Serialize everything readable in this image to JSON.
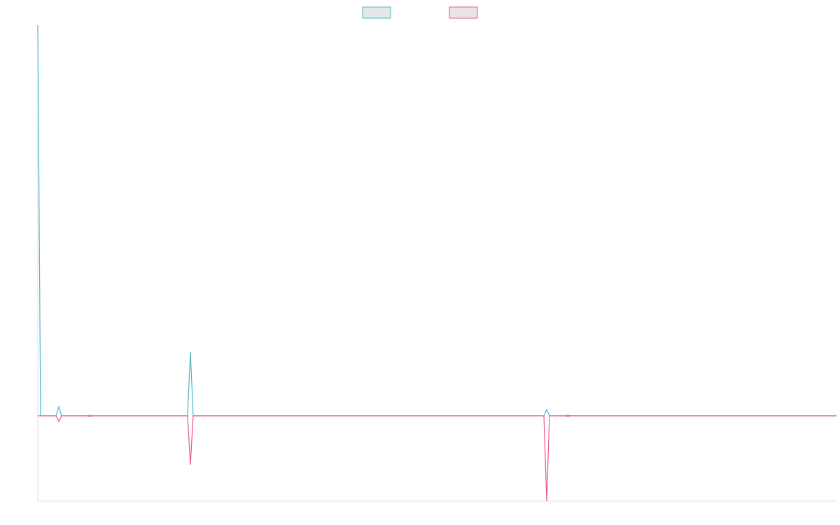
{
  "chart_data": {
    "type": "line",
    "x": [
      0,
      4,
      26,
      30,
      34,
      70,
      74,
      78,
      214,
      218,
      222,
      723,
      727,
      731,
      753,
      757,
      761,
      1141
    ],
    "series": [
      {
        "color": "#4bb8c4",
        "values": [
          558,
          0,
          0,
          13,
          0,
          0,
          1,
          0,
          0,
          91,
          0,
          0,
          9,
          0,
          0,
          1,
          0,
          0
        ]
      },
      {
        "color": "#f0577f",
        "values": [
          0,
          0,
          0,
          -8,
          0,
          0,
          -1,
          0,
          0,
          -70,
          0,
          0,
          -122,
          0,
          0,
          -1,
          0,
          0
        ]
      }
    ],
    "xlim": [
      0,
      1141
    ],
    "ylim": [
      -122,
      558
    ],
    "legend": "top"
  }
}
